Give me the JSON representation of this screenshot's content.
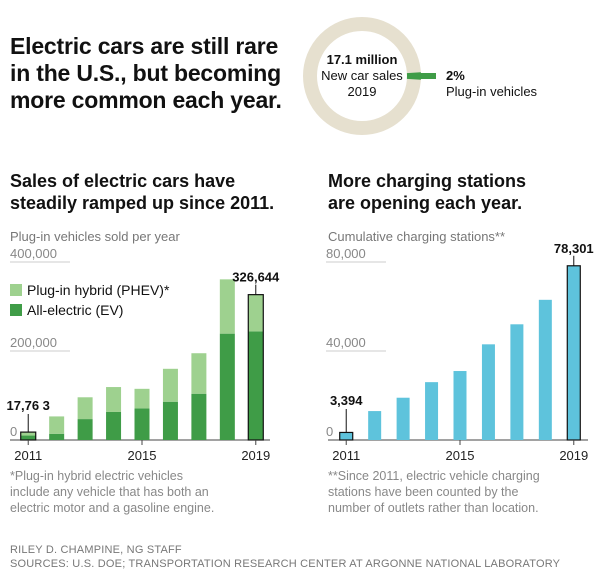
{
  "headline": "Electric cars are still rare in the U.S., but becoming more common each year.",
  "donut": {
    "value_line": "17.1 million",
    "label_line": "New car sales",
    "year_line": "2019",
    "callout_pct": "2%",
    "callout_label": "Plug-in vehicles",
    "share": 0.02,
    "colors": {
      "ring": "#e6e0cf",
      "slice": "#3f9c47"
    }
  },
  "left": {
    "title_line1": "Sales of electric cars have",
    "title_line2": "steadily ramped up since 2011.",
    "subtitle": "Plug-in vehicles sold per year",
    "legend": {
      "phev": "Plug-in hybrid (PHEV)*",
      "ev": "All-electric (EV)"
    },
    "footnote_lines": [
      "*Plug-in hybrid electric vehicles",
      "include any vehicle that has both an",
      "electric motor and a gasoline engine."
    ]
  },
  "right": {
    "title_line1": "More charging stations",
    "title_line2": "are opening each year.",
    "subtitle": "Cumulative charging stations**",
    "footnote_lines": [
      "**Since 2011, electric vehicle charging",
      "stations have been counted by the",
      "number of outlets rather than location."
    ]
  },
  "credit_line1": "RILEY D. CHAMPINE, NG STAFF",
  "credit_line2": "SOURCES: U.S. DOE; TRANSPORTATION RESEARCH CENTER AT ARGONNE NATIONAL LABORATORY",
  "colors": {
    "ev": "#3f9c47",
    "phev": "#9ed18f",
    "stations": "#5ec3dc",
    "outline": "#111111"
  },
  "chart_data": [
    {
      "type": "bar",
      "stacked": true,
      "categories": [
        "2011",
        "2012",
        "2013",
        "2014",
        "2015",
        "2016",
        "2017",
        "2018",
        "2019"
      ],
      "x_tick_labels": [
        "2011",
        "",
        "",
        "",
        "2015",
        "",
        "",
        "",
        "2019"
      ],
      "series": [
        {
          "name": "All-electric (EV)",
          "values": [
            10000,
            14000,
            47000,
            63000,
            71000,
            86000,
            104000,
            239000,
            244000
          ]
        },
        {
          "name": "Plug-in hybrid (PHEV)*",
          "values": [
            7763,
            39000,
            49000,
            56000,
            44000,
            74000,
            91000,
            122000,
            82644
          ]
        }
      ],
      "y_ticks": [
        0,
        200000,
        400000
      ],
      "y_tick_labels": [
        "0",
        "200,000",
        "400,000"
      ],
      "ylim": [
        0,
        400000
      ],
      "data_labels": {
        "first": "17,76 3",
        "last": "326,644"
      },
      "highlight_first_last": true
    },
    {
      "type": "bar",
      "categories": [
        "2011",
        "2012",
        "2013",
        "2014",
        "2015",
        "2016",
        "2017",
        "2018",
        "2019"
      ],
      "x_tick_labels": [
        "2011",
        "",
        "",
        "",
        "2015",
        "",
        "",
        "",
        "2019"
      ],
      "series": [
        {
          "name": "",
          "values": [
            3394,
            13000,
            19000,
            26000,
            31000,
            43000,
            52000,
            63000,
            78301
          ]
        }
      ],
      "y_ticks": [
        0,
        40000,
        80000
      ],
      "y_tick_labels": [
        "0",
        "40,000",
        "80,000"
      ],
      "ylim": [
        0,
        80000
      ],
      "data_labels": {
        "first": "3,394",
        "last": "78,301"
      },
      "highlight_first_last": true
    }
  ]
}
